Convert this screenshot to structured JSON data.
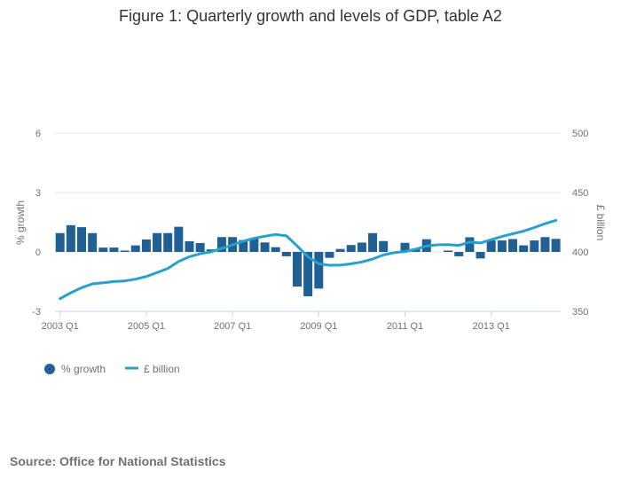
{
  "chart_data": {
    "type": "bar+line",
    "title": "Figure 1: Quarterly growth and levels of GDP, table A2",
    "categories": [
      "2003 Q1",
      "2003 Q2",
      "2003 Q3",
      "2003 Q4",
      "2004 Q1",
      "2004 Q2",
      "2004 Q3",
      "2004 Q4",
      "2005 Q1",
      "2005 Q2",
      "2005 Q3",
      "2005 Q4",
      "2006 Q1",
      "2006 Q2",
      "2006 Q3",
      "2006 Q4",
      "2007 Q1",
      "2007 Q2",
      "2007 Q3",
      "2007 Q4",
      "2008 Q1",
      "2008 Q2",
      "2008 Q3",
      "2008 Q4",
      "2009 Q1",
      "2009 Q2",
      "2009 Q3",
      "2009 Q4",
      "2010 Q1",
      "2010 Q2",
      "2010 Q3",
      "2010 Q4",
      "2011 Q1",
      "2011 Q2",
      "2011 Q3",
      "2011 Q4",
      "2012 Q1",
      "2012 Q2",
      "2012 Q3",
      "2012 Q4",
      "2013 Q1",
      "2013 Q2",
      "2013 Q3",
      "2013 Q4",
      "2014 Q1",
      "2014 Q2",
      "2014 Q3"
    ],
    "x_tick_labels": [
      "2003 Q1",
      "2005 Q1",
      "2007 Q1",
      "2009 Q1",
      "2011 Q1",
      "2013 Q1"
    ],
    "series": [
      {
        "name": "% growth",
        "type": "bar",
        "axis": "left",
        "color": "#206095",
        "values": [
          0.95,
          1.35,
          1.25,
          0.95,
          0.22,
          0.22,
          0.07,
          0.33,
          0.63,
          0.95,
          0.95,
          1.27,
          0.54,
          0.45,
          0.13,
          0.75,
          0.75,
          0.6,
          0.7,
          0.48,
          0.24,
          -0.22,
          -1.75,
          -2.24,
          -1.85,
          -0.3,
          0.15,
          0.35,
          0.47,
          0.95,
          0.55,
          0.0,
          0.46,
          0.15,
          0.64,
          0.0,
          0.07,
          -0.22,
          0.74,
          -0.33,
          0.58,
          0.58,
          0.65,
          0.33,
          0.58,
          0.75,
          0.66
        ]
      },
      {
        "name": "£ billion",
        "type": "line",
        "axis": "right",
        "color": "#27a0cc",
        "values": [
          360.7,
          365.7,
          369.9,
          373.1,
          374.1,
          375.1,
          375.6,
          377.1,
          379.3,
          382.6,
          386.1,
          392.0,
          396.0,
          398.5,
          400.0,
          403.0,
          406.0,
          409.0,
          411.5,
          413.2,
          414.7,
          413.5,
          405.0,
          396.0,
          390.0,
          388.8,
          388.9,
          390.0,
          391.6,
          394.0,
          397.5,
          399.4,
          400.3,
          402.3,
          405.0,
          406.0,
          406.1,
          405.5,
          408.2,
          407.5,
          410.3,
          413.0,
          415.3,
          417.5,
          420.5,
          423.8,
          426.6
        ]
      }
    ],
    "ylabel": "% growth",
    "ylim": [
      -3,
      6
    ],
    "yticks": [
      -3,
      0,
      3,
      6
    ],
    "y2label": "£ billion",
    "y2lim": [
      350,
      500
    ],
    "y2ticks": [
      350,
      400,
      450,
      500
    ],
    "grid": true,
    "legend": {
      "placement": "bottom-left",
      "entries": [
        "% growth",
        "£ billion"
      ]
    }
  },
  "source": "Source: Office for National Statistics"
}
